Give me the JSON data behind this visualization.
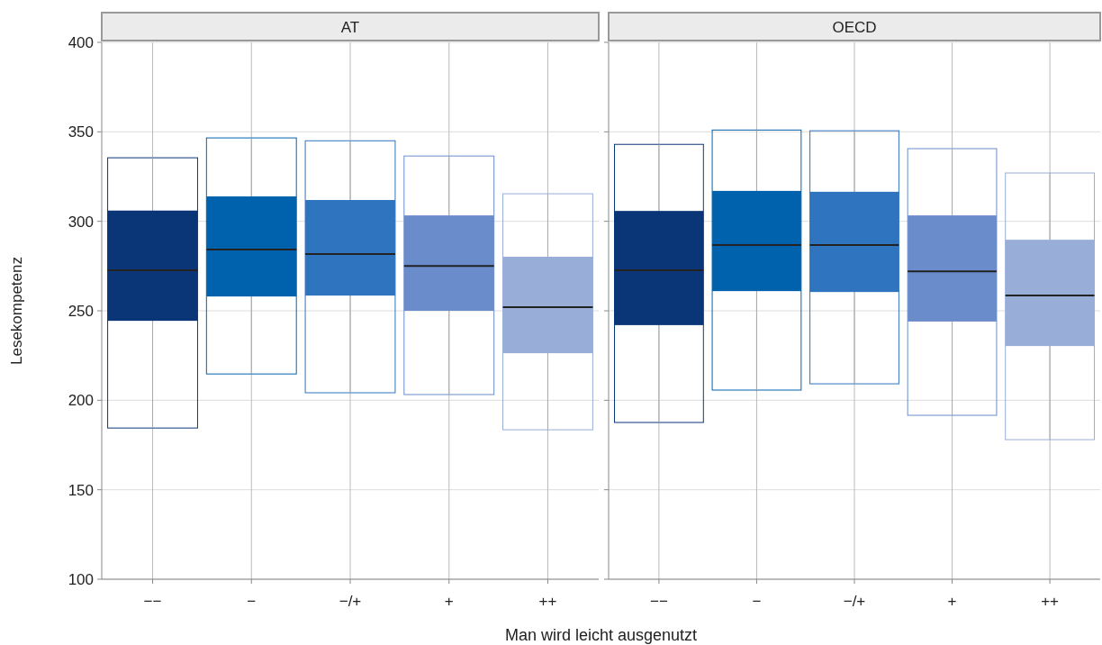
{
  "chart_data": [
    {
      "type": "box",
      "title": "AT",
      "ylabel": "Lesekompetenz",
      "xlabel": "Man wird leicht ausgenutzt",
      "categories": [
        "−−",
        "−",
        "−/+",
        "+",
        "++"
      ],
      "colors": [
        "#0a3678",
        "#0062ad",
        "#2e74bf",
        "#6a8ccb",
        "#98aed9"
      ],
      "boxes": [
        {
          "low": 184.5,
          "q1": 244.4,
          "median": 272.6,
          "q3": 306,
          "high": 335.5
        },
        {
          "low": 214.7,
          "q1": 258,
          "median": 284.2,
          "q3": 313.9,
          "high": 346.6
        },
        {
          "low": 204.2,
          "q1": 258.5,
          "median": 281.7,
          "q3": 311.9,
          "high": 345
        },
        {
          "low": 203.2,
          "q1": 250,
          "median": 275,
          "q3": 303.3,
          "high": 336.5
        },
        {
          "low": 183.5,
          "q1": 226.3,
          "median": 252,
          "q3": 280.2,
          "high": 315.4
        }
      ],
      "ylim": [
        100,
        400
      ],
      "yticks": [
        100,
        150,
        200,
        250,
        300,
        350,
        400
      ],
      "grid": true
    },
    {
      "type": "box",
      "title": "OECD",
      "categories": [
        "−−",
        "−",
        "−/+",
        "+",
        "++"
      ],
      "colors": [
        "#0a3678",
        "#0062ad",
        "#2e74bf",
        "#6a8ccb",
        "#98aed9"
      ],
      "boxes": [
        {
          "low": 187.6,
          "q1": 242,
          "median": 272.6,
          "q3": 305.8,
          "high": 343
        },
        {
          "low": 205.7,
          "q1": 261,
          "median": 286.7,
          "q3": 317,
          "high": 351
        },
        {
          "low": 209.2,
          "q1": 260.5,
          "median": 286.7,
          "q3": 316.5,
          "high": 350.6
        },
        {
          "low": 191.6,
          "q1": 244,
          "median": 272,
          "q3": 303.3,
          "high": 340.6
        },
        {
          "low": 178,
          "q1": 230.3,
          "median": 258.5,
          "q3": 289.7,
          "high": 327
        }
      ],
      "ylim": [
        100,
        400
      ],
      "yticks": [
        100,
        150,
        200,
        250,
        300,
        350,
        400
      ],
      "grid": true,
      "tick_labels": "x"
    }
  ]
}
